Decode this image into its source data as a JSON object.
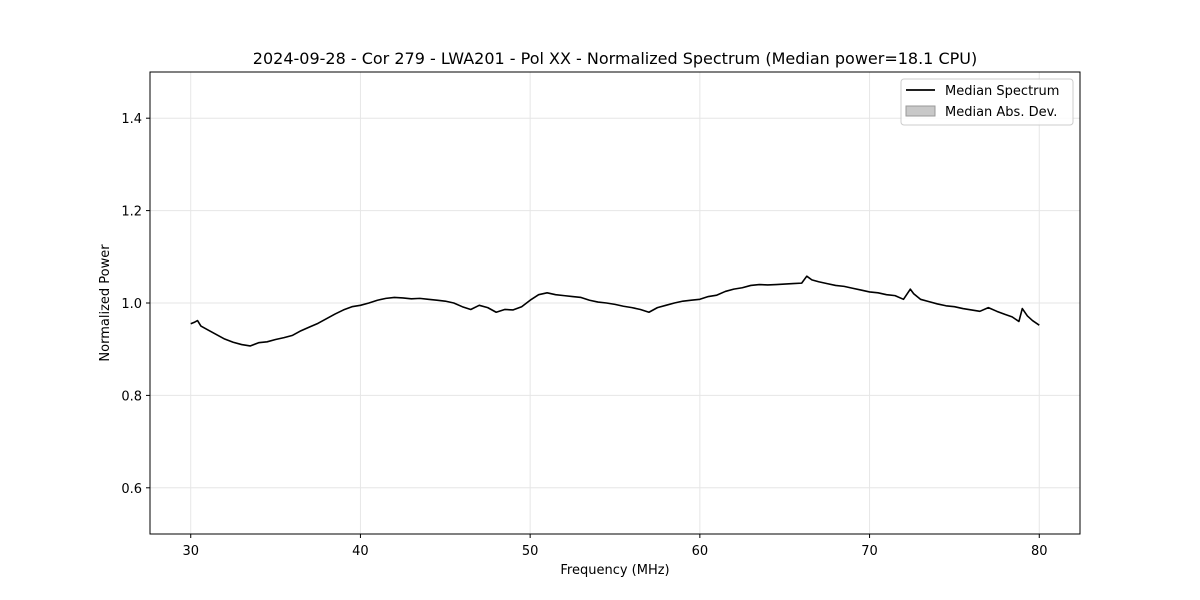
{
  "chart_data": {
    "type": "line",
    "title": "2024-09-28 - Cor 279 - LWA201 - Pol XX - Normalized Spectrum (Median power=18.1 CPU)",
    "xlabel": "Frequency (MHz)",
    "ylabel": "Normalized Power",
    "xlim": [
      27.6,
      82.4
    ],
    "ylim": [
      0.5,
      1.5
    ],
    "xticks": [
      30,
      40,
      50,
      60,
      70,
      80
    ],
    "yticks": [
      0.6,
      0.8,
      1.0,
      1.2,
      1.4
    ],
    "xtick_labels": [
      "30",
      "40",
      "50",
      "60",
      "70",
      "80"
    ],
    "ytick_labels": [
      "0.6",
      "0.8",
      "1.0",
      "1.2",
      "1.4"
    ],
    "grid": true,
    "legend_position": "top-right",
    "colors": {
      "line": "#000000",
      "band": "#b0b0b0",
      "grid": "#e6e6e6"
    },
    "series": [
      {
        "name": "Median Spectrum",
        "x": [
          30.0,
          30.2,
          30.4,
          30.6,
          31.0,
          31.5,
          32.0,
          32.5,
          33.0,
          33.5,
          34.0,
          34.5,
          35.0,
          35.5,
          36.0,
          36.5,
          37.0,
          37.5,
          38.0,
          38.5,
          39.0,
          39.5,
          40.0,
          40.5,
          41.0,
          41.5,
          42.0,
          42.5,
          43.0,
          43.5,
          44.0,
          44.5,
          45.0,
          45.5,
          46.0,
          46.5,
          47.0,
          47.5,
          48.0,
          48.5,
          49.0,
          49.5,
          50.0,
          50.5,
          51.0,
          51.5,
          52.0,
          52.5,
          53.0,
          53.5,
          54.0,
          54.5,
          55.0,
          55.5,
          56.0,
          56.5,
          57.0,
          57.5,
          58.0,
          58.5,
          59.0,
          59.5,
          60.0,
          60.5,
          61.0,
          61.5,
          62.0,
          62.5,
          63.0,
          63.5,
          64.0,
          64.5,
          65.0,
          65.5,
          66.0,
          66.3,
          66.6,
          67.0,
          67.5,
          68.0,
          68.5,
          69.0,
          69.5,
          70.0,
          70.5,
          71.0,
          71.5,
          72.0,
          72.4,
          72.6,
          73.0,
          73.5,
          74.0,
          74.5,
          75.0,
          75.5,
          76.0,
          76.5,
          77.0,
          77.5,
          78.0,
          78.4,
          78.8,
          79.0,
          79.3,
          79.6,
          80.0
        ],
        "values": [
          0.955,
          0.958,
          0.962,
          0.95,
          0.942,
          0.932,
          0.922,
          0.915,
          0.91,
          0.907,
          0.914,
          0.916,
          0.921,
          0.925,
          0.93,
          0.94,
          0.948,
          0.956,
          0.966,
          0.976,
          0.985,
          0.992,
          0.995,
          1.0,
          1.006,
          1.01,
          1.012,
          1.011,
          1.009,
          1.01,
          1.008,
          1.006,
          1.004,
          1.0,
          0.992,
          0.986,
          0.995,
          0.99,
          0.98,
          0.986,
          0.985,
          0.992,
          1.006,
          1.018,
          1.022,
          1.018,
          1.016,
          1.014,
          1.012,
          1.006,
          1.002,
          1.0,
          0.997,
          0.993,
          0.99,
          0.986,
          0.98,
          0.99,
          0.995,
          1.0,
          1.004,
          1.006,
          1.008,
          1.014,
          1.017,
          1.025,
          1.03,
          1.033,
          1.038,
          1.04,
          1.039,
          1.04,
          1.041,
          1.042,
          1.043,
          1.058,
          1.05,
          1.046,
          1.042,
          1.038,
          1.036,
          1.032,
          1.028,
          1.024,
          1.022,
          1.018,
          1.016,
          1.008,
          1.03,
          1.02,
          1.008,
          1.003,
          0.998,
          0.994,
          0.992,
          0.988,
          0.985,
          0.982,
          0.99,
          0.982,
          0.975,
          0.97,
          0.96,
          0.988,
          0.972,
          0.962,
          0.952
        ],
        "fill_between": null
      }
    ],
    "legend": [
      {
        "name": "Median Spectrum",
        "kind": "line"
      },
      {
        "name": "Median Abs. Dev.",
        "kind": "patch"
      }
    ]
  }
}
